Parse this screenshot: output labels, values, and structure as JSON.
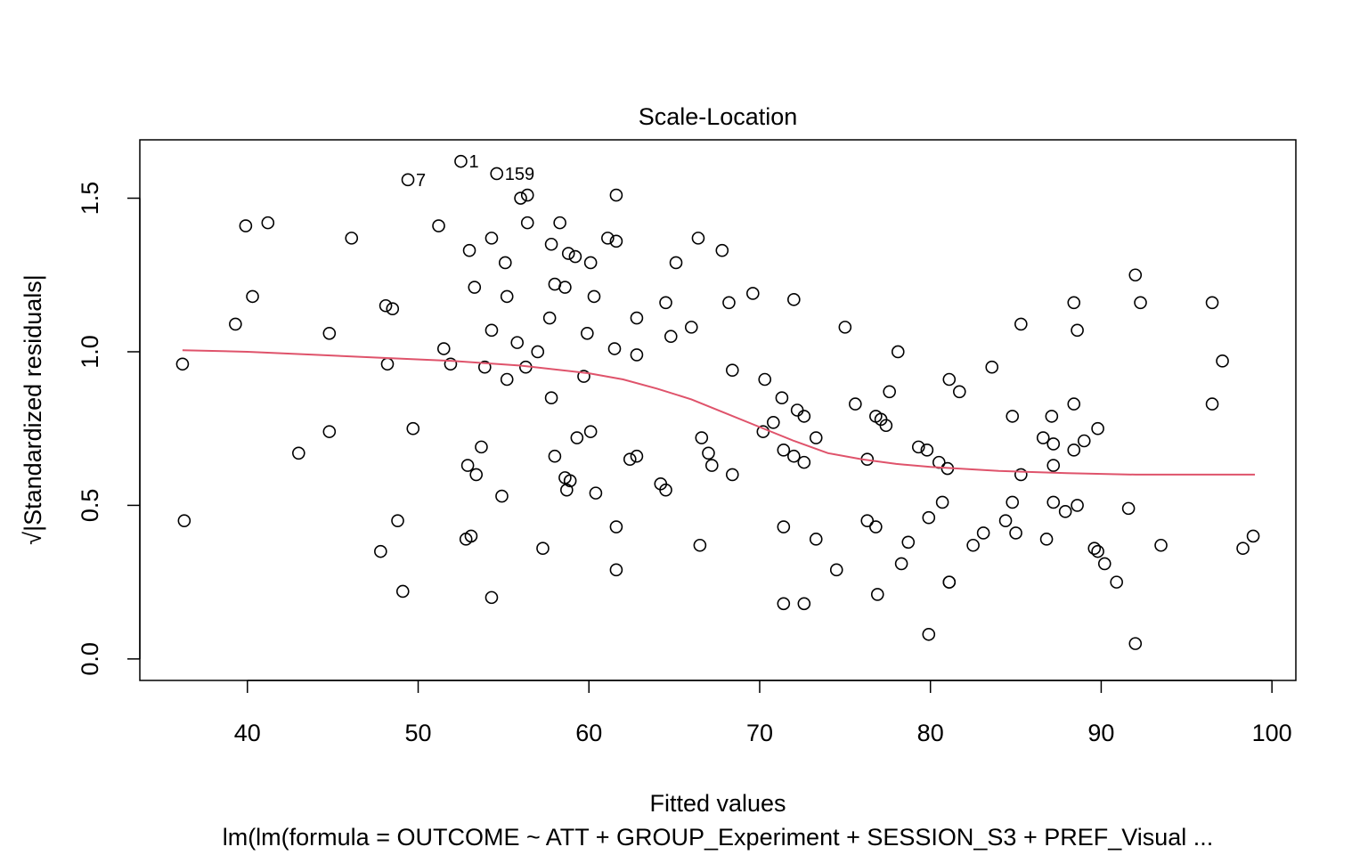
{
  "chart_data": {
    "type": "scatter",
    "title": "Scale-Location",
    "xlabel": "Fitted values",
    "ylabel": "√|Standardized residuals|",
    "subtitle": "lm(lm(formula = OUTCOME ~ ATT + GROUP_Experiment + SESSION_S3 + PREF_Visual ...",
    "xlim": [
      33.7,
      101.4
    ],
    "ylim": [
      -0.07,
      1.69
    ],
    "x_ticks": [
      40,
      50,
      60,
      70,
      80,
      90,
      100
    ],
    "y_ticks": [
      0.0,
      0.5,
      1.0,
      1.5
    ],
    "x_tick_labels": [
      "40",
      "50",
      "60",
      "70",
      "80",
      "90",
      "100"
    ],
    "y_tick_labels": [
      "0.0",
      "0.5",
      "1.0",
      "1.5"
    ],
    "points": [
      [
        36.2,
        0.96
      ],
      [
        36.3,
        0.45
      ],
      [
        39.3,
        1.09
      ],
      [
        39.9,
        1.41
      ],
      [
        40.3,
        1.18
      ],
      [
        41.2,
        1.42
      ],
      [
        43.0,
        0.67
      ],
      [
        44.8,
        1.06
      ],
      [
        44.8,
        0.74
      ],
      [
        46.1,
        1.37
      ],
      [
        47.8,
        0.35
      ],
      [
        48.1,
        1.15
      ],
      [
        48.2,
        0.96
      ],
      [
        48.5,
        1.14
      ],
      [
        48.8,
        0.45
      ],
      [
        49.1,
        0.22
      ],
      [
        49.7,
        0.75
      ],
      [
        51.2,
        1.41
      ],
      [
        51.5,
        1.01
      ],
      [
        51.9,
        0.96
      ],
      [
        52.8,
        0.39
      ],
      [
        52.9,
        0.63
      ],
      [
        53.1,
        0.4
      ],
      [
        53.0,
        1.33
      ],
      [
        53.3,
        1.21
      ],
      [
        53.4,
        0.6
      ],
      [
        53.7,
        0.69
      ],
      [
        53.9,
        0.95
      ],
      [
        54.3,
        1.37
      ],
      [
        54.3,
        1.07
      ],
      [
        54.3,
        0.2
      ],
      [
        54.9,
        0.53
      ],
      [
        55.1,
        1.29
      ],
      [
        55.2,
        1.18
      ],
      [
        55.2,
        0.91
      ],
      [
        55.8,
        1.03
      ],
      [
        56.0,
        1.5
      ],
      [
        56.3,
        0.95
      ],
      [
        56.4,
        1.42
      ],
      [
        57.0,
        1.0
      ],
      [
        57.3,
        0.36
      ],
      [
        57.7,
        1.11
      ],
      [
        57.8,
        0.85
      ],
      [
        57.8,
        1.35
      ],
      [
        58.0,
        1.22
      ],
      [
        58.0,
        0.66
      ],
      [
        58.3,
        1.42
      ],
      [
        58.6,
        1.21
      ],
      [
        58.6,
        0.59
      ],
      [
        58.7,
        0.55
      ],
      [
        58.8,
        1.32
      ],
      [
        58.9,
        0.58
      ],
      [
        59.2,
        1.31
      ],
      [
        59.3,
        0.72
      ],
      [
        59.7,
        0.92
      ],
      [
        59.9,
        1.06
      ],
      [
        60.1,
        1.29
      ],
      [
        60.1,
        0.74
      ],
      [
        60.3,
        1.18
      ],
      [
        60.4,
        0.54
      ],
      [
        61.1,
        1.37
      ],
      [
        61.5,
        1.01
      ],
      [
        61.6,
        1.36
      ],
      [
        61.6,
        0.43
      ],
      [
        61.6,
        0.29
      ],
      [
        62.4,
        0.65
      ],
      [
        62.8,
        0.66
      ],
      [
        62.8,
        1.11
      ],
      [
        62.8,
        0.99
      ],
      [
        64.2,
        0.57
      ],
      [
        64.5,
        0.55
      ],
      [
        64.5,
        1.16
      ],
      [
        64.8,
        1.05
      ],
      [
        65.1,
        1.29
      ],
      [
        66.0,
        1.08
      ],
      [
        66.4,
        1.37
      ],
      [
        66.5,
        0.37
      ],
      [
        66.6,
        0.72
      ],
      [
        67.0,
        0.67
      ],
      [
        67.2,
        0.63
      ],
      [
        67.8,
        1.33
      ],
      [
        68.2,
        1.16
      ],
      [
        68.4,
        0.94
      ],
      [
        68.4,
        0.6
      ],
      [
        69.6,
        1.19
      ],
      [
        70.2,
        0.74
      ],
      [
        70.3,
        0.91
      ],
      [
        70.8,
        0.77
      ],
      [
        71.3,
        0.85
      ],
      [
        71.4,
        0.68
      ],
      [
        71.4,
        0.43
      ],
      [
        71.4,
        0.18
      ],
      [
        72.0,
        1.17
      ],
      [
        72.0,
        0.66
      ],
      [
        72.2,
        0.81
      ],
      [
        72.6,
        0.64
      ],
      [
        72.6,
        0.79
      ],
      [
        72.6,
        0.18
      ],
      [
        73.3,
        0.72
      ],
      [
        73.3,
        0.39
      ],
      [
        74.5,
        0.29
      ],
      [
        75.0,
        1.08
      ],
      [
        75.6,
        0.83
      ],
      [
        76.3,
        0.45
      ],
      [
        76.3,
        0.65
      ],
      [
        76.8,
        0.79
      ],
      [
        76.8,
        0.43
      ],
      [
        76.9,
        0.21
      ],
      [
        77.1,
        0.78
      ],
      [
        77.4,
        0.76
      ],
      [
        77.6,
        0.87
      ],
      [
        78.1,
        1.0
      ],
      [
        78.3,
        0.31
      ],
      [
        78.7,
        0.38
      ],
      [
        79.3,
        0.69
      ],
      [
        79.8,
        0.68
      ],
      [
        79.9,
        0.46
      ],
      [
        79.9,
        0.08
      ],
      [
        80.5,
        0.64
      ],
      [
        80.7,
        0.51
      ],
      [
        81.0,
        0.62
      ],
      [
        81.1,
        0.91
      ],
      [
        81.1,
        0.25
      ],
      [
        81.1,
        0.25
      ],
      [
        81.7,
        0.87
      ],
      [
        82.5,
        0.37
      ],
      [
        83.1,
        0.41
      ],
      [
        83.6,
        0.95
      ],
      [
        84.4,
        0.45
      ],
      [
        84.8,
        0.79
      ],
      [
        84.8,
        0.51
      ],
      [
        85.0,
        0.41
      ],
      [
        85.3,
        1.09
      ],
      [
        85.3,
        0.6
      ],
      [
        86.6,
        0.72
      ],
      [
        86.8,
        0.39
      ],
      [
        87.1,
        0.79
      ],
      [
        87.2,
        0.63
      ],
      [
        87.2,
        0.7
      ],
      [
        87.2,
        0.51
      ],
      [
        87.9,
        0.48
      ],
      [
        88.4,
        1.16
      ],
      [
        88.4,
        0.83
      ],
      [
        88.4,
        0.68
      ],
      [
        88.6,
        0.5
      ],
      [
        88.6,
        1.07
      ],
      [
        89.0,
        0.71
      ],
      [
        89.6,
        0.36
      ],
      [
        89.8,
        0.35
      ],
      [
        89.8,
        0.75
      ],
      [
        90.2,
        0.31
      ],
      [
        90.9,
        0.25
      ],
      [
        91.6,
        0.49
      ],
      [
        92.0,
        1.25
      ],
      [
        92.0,
        0.05
      ],
      [
        92.3,
        1.16
      ],
      [
        93.5,
        0.37
      ],
      [
        96.5,
        1.16
      ],
      [
        96.5,
        0.83
      ],
      [
        97.1,
        0.97
      ],
      [
        98.3,
        0.36
      ],
      [
        98.9,
        0.4
      ],
      [
        52.5,
        1.62
      ],
      [
        49.4,
        1.56
      ],
      [
        54.6,
        1.58
      ],
      [
        56.4,
        1.51
      ],
      [
        61.6,
        1.51
      ]
    ],
    "labeled_points": [
      {
        "label": "1",
        "x": 52.5,
        "y": 1.62
      },
      {
        "label": "7",
        "x": 49.4,
        "y": 1.56
      },
      {
        "label": "159",
        "x": 54.6,
        "y": 1.58
      }
    ],
    "smoother": {
      "name": "",
      "x": [
        36.2,
        40.0,
        44.0,
        48.0,
        52.0,
        56.0,
        60.0,
        62.0,
        64.0,
        66.0,
        68.0,
        70.0,
        72.0,
        74.0,
        76.0,
        78.0,
        80.0,
        84.0,
        88.0,
        92.0,
        96.0,
        99.0
      ],
      "y": [
        1.005,
        1.0,
        0.99,
        0.98,
        0.97,
        0.955,
        0.93,
        0.91,
        0.88,
        0.845,
        0.8,
        0.755,
        0.71,
        0.67,
        0.65,
        0.635,
        0.625,
        0.612,
        0.605,
        0.6,
        0.6,
        0.6
      ]
    },
    "grid": false,
    "colors": {
      "points": "#000000",
      "smoother": "#DF536B",
      "axes": "#000000"
    }
  }
}
